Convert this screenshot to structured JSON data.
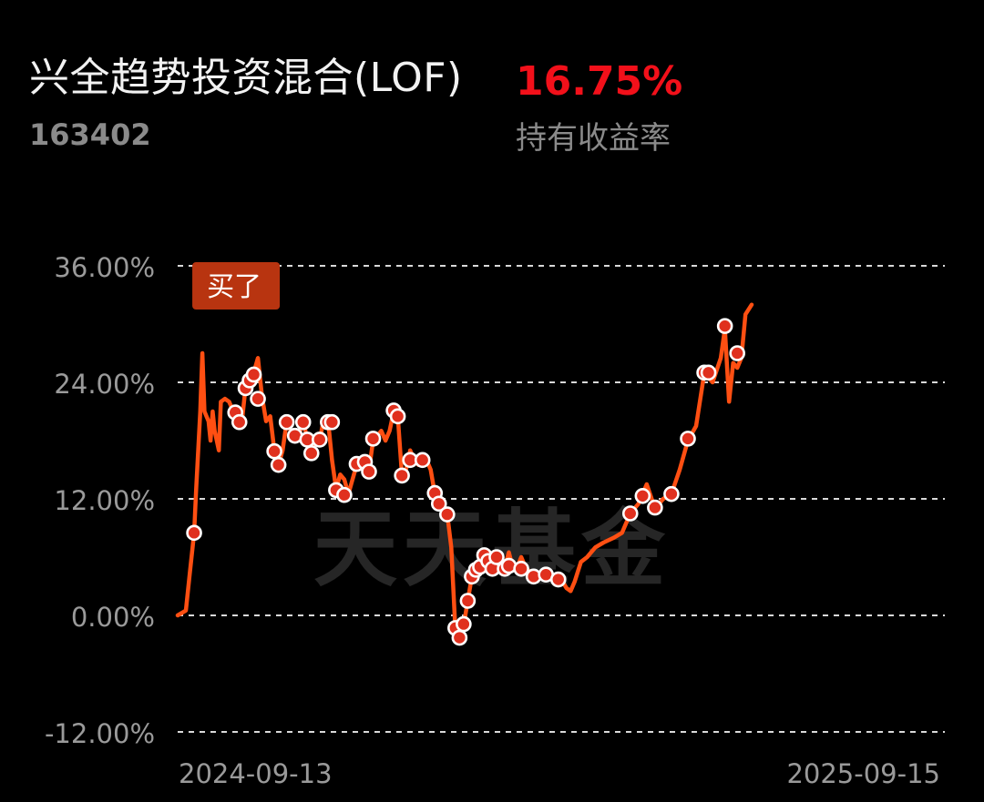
{
  "fund": {
    "name": "兴全趋势投资混合(LOF)",
    "code": "163402",
    "return_value": "16.75%",
    "return_label": "持有收益率"
  },
  "colors": {
    "background": "#000000",
    "line": "#ff4f12",
    "marker_fill": "#e0301e",
    "marker_stroke": "#ffffff",
    "buy_tag": "#b83410",
    "grid": "#d9d9d9",
    "axis_text": "#9a9a9a",
    "return_red": "#f2101a",
    "watermark": "#2a2a2a"
  },
  "watermark": "天天基金",
  "chart_data": {
    "type": "line",
    "title": "",
    "xlabel": "",
    "ylabel": "",
    "ylim": [
      -12,
      36
    ],
    "y_ticks": [
      36,
      24,
      12,
      0,
      -12
    ],
    "y_tick_labels": [
      "36.00%",
      "24.00%",
      "12.00%",
      "0.00%",
      "-12.00%"
    ],
    "x_range": [
      "2024-09-10",
      "2025-09-17"
    ],
    "x_tick_labels": [
      {
        "date": "2024-09-13",
        "label": "2024-09-13"
      },
      {
        "date": "2025-09-15",
        "label": "2025-09-15"
      }
    ],
    "grid": true,
    "buy_marker": {
      "date": "2024-09-18",
      "label": "买了"
    },
    "series": [
      {
        "values": [
          [
            "2024-09-10",
            0.0
          ],
          [
            "2024-09-14",
            0.5
          ],
          [
            "2024-09-16",
            4.5
          ],
          [
            "2024-09-18",
            8.5
          ],
          [
            "2024-09-19",
            13
          ],
          [
            "2024-09-21",
            21
          ],
          [
            "2024-09-22",
            27
          ],
          [
            "2024-09-23",
            21
          ],
          [
            "2024-09-25",
            20
          ],
          [
            "2024-09-26",
            18
          ],
          [
            "2024-09-27",
            21
          ],
          [
            "2024-09-28",
            19
          ],
          [
            "2024-09-30",
            17
          ],
          [
            "2024-10-01",
            22
          ],
          [
            "2024-10-03",
            22.3
          ],
          [
            "2024-10-05",
            22
          ],
          [
            "2024-10-07",
            21
          ],
          [
            "2024-10-09",
            20
          ],
          [
            "2024-10-11",
            19.5
          ],
          [
            "2024-10-13",
            23.5
          ],
          [
            "2024-10-15",
            24.5
          ],
          [
            "2024-10-17",
            25
          ],
          [
            "2024-10-19",
            26.5
          ],
          [
            "2024-10-21",
            22.5
          ],
          [
            "2024-10-23",
            20
          ],
          [
            "2024-10-25",
            20.5
          ],
          [
            "2024-10-27",
            17
          ],
          [
            "2024-10-29",
            15.5
          ],
          [
            "2024-10-31",
            17
          ],
          [
            "2024-11-02",
            20
          ],
          [
            "2024-11-04",
            19
          ],
          [
            "2024-11-06",
            18
          ],
          [
            "2024-11-08",
            18.5
          ],
          [
            "2024-11-10",
            20.2
          ],
          [
            "2024-11-12",
            18
          ],
          [
            "2024-11-14",
            16.5
          ],
          [
            "2024-11-16",
            18.5
          ],
          [
            "2024-11-18",
            18
          ],
          [
            "2024-11-20",
            20.2
          ],
          [
            "2024-11-22",
            20.3
          ],
          [
            "2024-11-24",
            16
          ],
          [
            "2024-11-26",
            13
          ],
          [
            "2024-11-28",
            14.5
          ],
          [
            "2024-11-30",
            14
          ],
          [
            "2024-12-02",
            12.5
          ],
          [
            "2024-12-04",
            14
          ],
          [
            "2024-12-06",
            15.5
          ],
          [
            "2024-12-08",
            16
          ],
          [
            "2024-12-10",
            16
          ],
          [
            "2024-12-12",
            15
          ],
          [
            "2024-12-14",
            18
          ],
          [
            "2024-12-16",
            18.5
          ],
          [
            "2024-12-18",
            19
          ],
          [
            "2024-12-20",
            18
          ],
          [
            "2024-12-22",
            19
          ],
          [
            "2024-12-24",
            21
          ],
          [
            "2024-12-26",
            20.5
          ],
          [
            "2024-12-28",
            14.5
          ],
          [
            "2024-12-30",
            15
          ],
          [
            "2025-01-01",
            17
          ],
          [
            "2025-01-03",
            16
          ],
          [
            "2025-01-05",
            15.5
          ],
          [
            "2025-01-07",
            16
          ],
          [
            "2025-01-09",
            16
          ],
          [
            "2025-01-11",
            15
          ],
          [
            "2025-01-13",
            12.5
          ],
          [
            "2025-01-15",
            11.5
          ],
          [
            "2025-01-17",
            11
          ],
          [
            "2025-01-19",
            10.5
          ],
          [
            "2025-01-21",
            7
          ],
          [
            "2025-01-23",
            -1.5
          ],
          [
            "2025-01-25",
            -2.3
          ],
          [
            "2025-01-27",
            -1
          ],
          [
            "2025-01-29",
            1.5
          ],
          [
            "2025-01-31",
            4
          ],
          [
            "2025-02-02",
            4.5
          ],
          [
            "2025-02-04",
            5
          ],
          [
            "2025-02-06",
            6.2
          ],
          [
            "2025-02-08",
            5.5
          ],
          [
            "2025-02-10",
            4.8
          ],
          [
            "2025-02-12",
            6
          ],
          [
            "2025-02-14",
            5.5
          ],
          [
            "2025-02-16",
            5
          ],
          [
            "2025-02-18",
            6.5
          ],
          [
            "2025-02-20",
            4.8
          ],
          [
            "2025-02-22",
            5
          ],
          [
            "2025-02-24",
            6
          ],
          [
            "2025-02-26",
            5
          ],
          [
            "2025-02-28",
            4.5
          ],
          [
            "2025-03-02",
            3.5
          ],
          [
            "2025-03-04",
            4
          ],
          [
            "2025-03-06",
            4
          ],
          [
            "2025-03-08",
            4.5
          ],
          [
            "2025-03-10",
            4.2
          ],
          [
            "2025-03-12",
            3.5
          ],
          [
            "2025-03-14",
            3.8
          ],
          [
            "2025-03-16",
            3.5
          ],
          [
            "2025-03-18",
            2.8
          ],
          [
            "2025-03-20",
            2.5
          ],
          [
            "2025-03-22",
            3.5
          ],
          [
            "2025-03-25",
            5.5
          ],
          [
            "2025-03-28",
            6
          ],
          [
            "2025-04-01",
            7
          ],
          [
            "2025-04-05",
            7.5
          ],
          [
            "2025-04-10",
            8
          ],
          [
            "2025-04-14",
            8.5
          ],
          [
            "2025-04-18",
            10.5
          ],
          [
            "2025-04-22",
            11.5
          ],
          [
            "2025-04-26",
            13.5
          ],
          [
            "2025-04-30",
            11
          ],
          [
            "2025-05-04",
            12
          ],
          [
            "2025-05-08",
            12.5
          ],
          [
            "2025-05-12",
            15
          ],
          [
            "2025-05-16",
            18
          ],
          [
            "2025-05-20",
            19.5
          ],
          [
            "2025-05-24",
            25
          ],
          [
            "2025-05-28",
            24
          ],
          [
            "2025-06-01",
            26.5
          ],
          [
            "2025-06-03",
            29.5
          ],
          [
            "2025-06-05",
            22
          ],
          [
            "2025-06-07",
            26
          ],
          [
            "2025-06-09",
            25.5
          ],
          [
            "2025-06-11",
            26.5
          ],
          [
            "2025-06-13",
            31
          ],
          [
            "2025-06-16",
            32
          ]
        ],
        "markers": [
          [
            "2024-10-08",
            20.9
          ],
          [
            "2024-10-10",
            19.9
          ],
          [
            "2024-10-13",
            23.4
          ],
          [
            "2024-10-15",
            24.2
          ],
          [
            "2024-10-17",
            24.8
          ],
          [
            "2024-10-19",
            22.3
          ],
          [
            "2024-10-27",
            16.9
          ],
          [
            "2024-10-29",
            15.5
          ],
          [
            "2024-11-02",
            19.9
          ],
          [
            "2024-11-06",
            18.5
          ],
          [
            "2024-11-10",
            19.9
          ],
          [
            "2024-11-12",
            18.1
          ],
          [
            "2024-11-14",
            16.7
          ],
          [
            "2024-11-18",
            18.1
          ],
          [
            "2024-11-22",
            19.9
          ],
          [
            "2024-11-24",
            19.9
          ],
          [
            "2024-11-26",
            12.9
          ],
          [
            "2024-11-30",
            12.4
          ],
          [
            "2024-12-06",
            15.6
          ],
          [
            "2024-12-10",
            15.8
          ],
          [
            "2024-12-12",
            14.8
          ],
          [
            "2024-12-14",
            18.2
          ],
          [
            "2024-12-24",
            21.1
          ],
          [
            "2024-12-26",
            20.5
          ],
          [
            "2024-12-28",
            14.4
          ],
          [
            "2025-01-01",
            16.0
          ],
          [
            "2025-01-07",
            16.0
          ],
          [
            "2025-01-13",
            12.6
          ],
          [
            "2025-01-15",
            11.5
          ],
          [
            "2025-01-19",
            10.4
          ],
          [
            "2025-01-23",
            -1.3
          ],
          [
            "2025-01-25",
            -2.3
          ],
          [
            "2025-01-27",
            -0.9
          ],
          [
            "2025-01-29",
            1.5
          ],
          [
            "2025-01-31",
            4.0
          ],
          [
            "2025-02-02",
            4.7
          ],
          [
            "2025-02-04",
            5.0
          ],
          [
            "2025-02-06",
            6.2
          ],
          [
            "2025-02-08",
            5.6
          ],
          [
            "2025-02-10",
            4.8
          ],
          [
            "2025-02-12",
            6.0
          ],
          [
            "2025-02-16",
            4.8
          ],
          [
            "2025-02-18",
            5.1
          ],
          [
            "2025-02-24",
            4.8
          ],
          [
            "2025-03-02",
            4.0
          ],
          [
            "2025-03-08",
            4.2
          ],
          [
            "2025-03-14",
            3.7
          ],
          [
            "2025-04-18",
            10.5
          ],
          [
            "2025-04-24",
            12.3
          ],
          [
            "2025-04-30",
            11.1
          ],
          [
            "2025-05-08",
            12.5
          ],
          [
            "2025-05-16",
            18.2
          ],
          [
            "2025-05-24",
            25.0
          ],
          [
            "2025-05-26",
            25.0
          ],
          [
            "2025-06-03",
            29.8
          ],
          [
            "2025-06-09",
            27.0
          ]
        ]
      }
    ]
  }
}
